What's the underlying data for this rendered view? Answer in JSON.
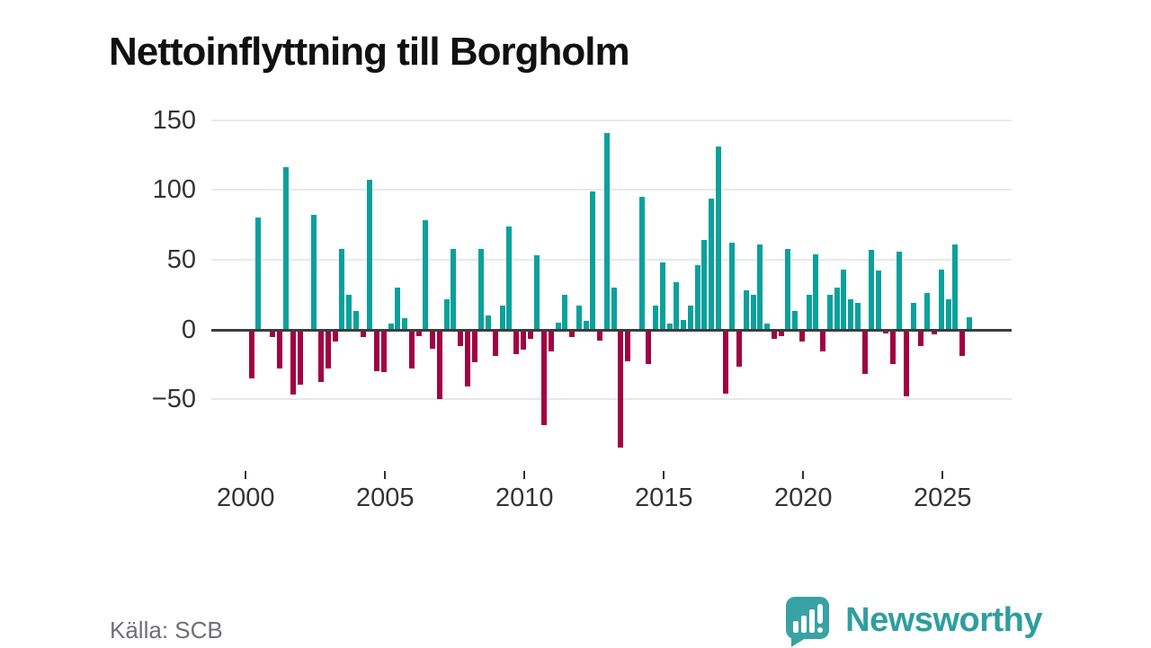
{
  "title": "Nettoinflyttning till Borgholm",
  "source": "Källa: SCB",
  "logo": {
    "text": "Newsworthy"
  },
  "colors": {
    "positive": "#0aa19c",
    "negative": "#a10342",
    "grid": "#e8e8e8",
    "zero_axis": "#3c3c3c",
    "tick_label": "#333333",
    "title_text": "#111111",
    "source_text": "#6f6f79",
    "logo_teal": "#38a2a4",
    "logo_text_teal": "#2e9ea0"
  },
  "chart_data": {
    "type": "bar",
    "title": "Nettoinflyttning till Borgholm",
    "xlabel": "",
    "ylabel": "",
    "frequency": "quarterly",
    "grid": true,
    "legend": "none",
    "yticks": [
      150,
      100,
      50,
      0,
      -50
    ],
    "xticks": [
      2000,
      2005,
      2010,
      2015,
      2020,
      2025
    ],
    "ylim": [
      -90,
      160
    ],
    "years": [
      {
        "year": 2000,
        "values": [
          -34,
          80,
          0,
          -5
        ]
      },
      {
        "year": 2001,
        "values": [
          -27,
          116,
          -46,
          -39
        ]
      },
      {
        "year": 2002,
        "values": [
          0,
          82,
          -37,
          -27
        ]
      },
      {
        "year": 2003,
        "values": [
          -8,
          58,
          25,
          13
        ]
      },
      {
        "year": 2004,
        "values": [
          -5,
          107,
          -29,
          -30
        ]
      },
      {
        "year": 2005,
        "values": [
          4,
          30,
          8,
          -27
        ]
      },
      {
        "year": 2006,
        "values": [
          -4,
          78,
          -13,
          -49
        ]
      },
      {
        "year": 2007,
        "values": [
          22,
          58,
          -11,
          -40
        ]
      },
      {
        "year": 2008,
        "values": [
          -23,
          58,
          10,
          -18
        ]
      },
      {
        "year": 2009,
        "values": [
          17,
          74,
          -17,
          -14
        ]
      },
      {
        "year": 2010,
        "values": [
          -6,
          53,
          -68,
          -15
        ]
      },
      {
        "year": 2011,
        "values": [
          5,
          25,
          -5,
          17
        ]
      },
      {
        "year": 2012,
        "values": [
          6,
          99,
          -7,
          141
        ]
      },
      {
        "year": 2013,
        "values": [
          30,
          -84,
          -22,
          0
        ]
      },
      {
        "year": 2014,
        "values": [
          95,
          -24,
          17,
          48
        ]
      },
      {
        "year": 2015,
        "values": [
          4,
          34,
          7,
          17
        ]
      },
      {
        "year": 2016,
        "values": [
          46,
          64,
          94,
          131
        ]
      },
      {
        "year": 2017,
        "values": [
          -45,
          62,
          -26,
          28
        ]
      },
      {
        "year": 2018,
        "values": [
          25,
          61,
          4,
          -6
        ]
      },
      {
        "year": 2019,
        "values": [
          -4,
          58,
          13,
          -8
        ]
      },
      {
        "year": 2020,
        "values": [
          25,
          54,
          -15,
          25
        ]
      },
      {
        "year": 2021,
        "values": [
          30,
          43,
          22,
          19
        ]
      },
      {
        "year": 2022,
        "values": [
          -31,
          57,
          42,
          -2
        ]
      },
      {
        "year": 2023,
        "values": [
          -24,
          56,
          -47,
          19
        ]
      },
      {
        "year": 2024,
        "values": [
          -11,
          26,
          -3,
          43
        ]
      },
      {
        "year": 2025,
        "values": [
          22,
          61,
          -18,
          9
        ]
      }
    ]
  }
}
